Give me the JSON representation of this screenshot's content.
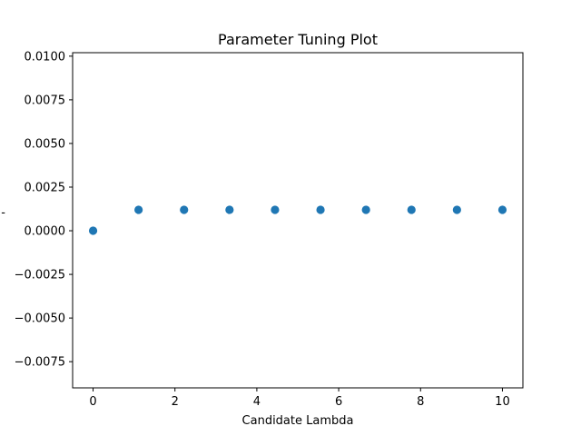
{
  "chart_data": {
    "type": "scatter",
    "title": "Parameter Tuning Plot",
    "xlabel": "Candidate Lambda",
    "ylabel": "-",
    "xlim": [
      -0.5,
      10.5
    ],
    "ylim": [
      -0.009,
      0.0102
    ],
    "x_ticks": [
      0,
      2,
      4,
      6,
      8,
      10
    ],
    "x_tick_labels": [
      "0",
      "2",
      "4",
      "6",
      "8",
      "10"
    ],
    "y_ticks": [
      -0.0075,
      -0.005,
      -0.0025,
      0.0,
      0.0025,
      0.005,
      0.0075,
      0.01
    ],
    "y_tick_labels": [
      "−0.0075",
      "−0.0050",
      "−0.0025",
      "0.0000",
      "0.0025",
      "0.0050",
      "0.0075",
      "0.0100"
    ],
    "grid": false,
    "marker_color": "#1f77b4",
    "series": [
      {
        "x": [
          0,
          1.111,
          2.222,
          3.333,
          4.444,
          5.556,
          6.667,
          7.778,
          8.889,
          10
        ],
        "y": [
          0.0,
          0.0012,
          0.0012,
          0.0012,
          0.0012,
          0.0012,
          0.0012,
          0.0012,
          0.0012,
          0.0012
        ]
      }
    ]
  }
}
